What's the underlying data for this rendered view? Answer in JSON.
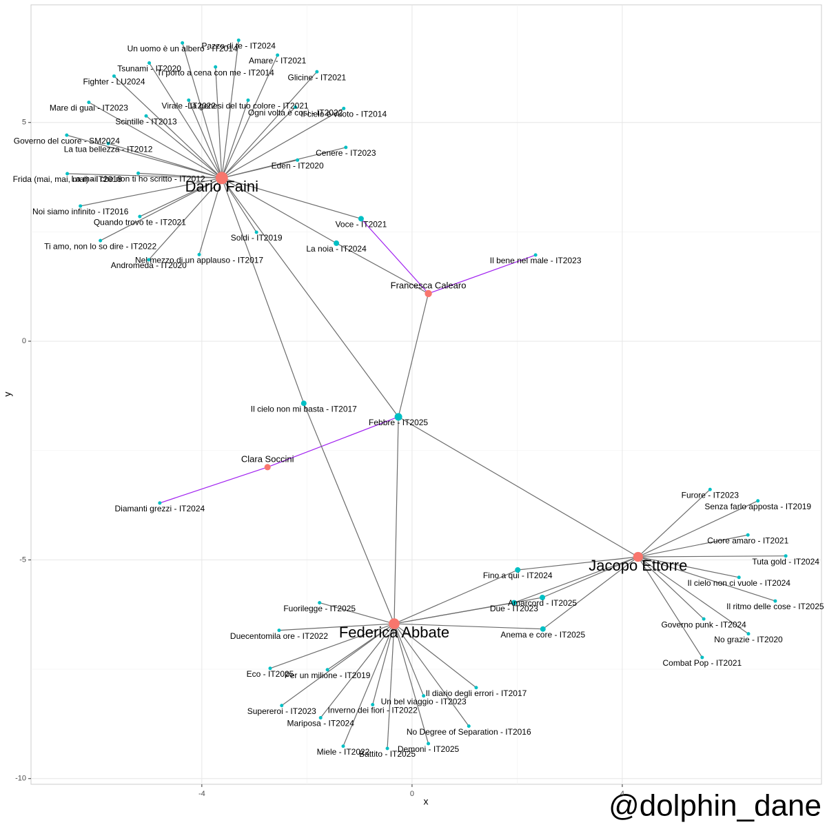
{
  "chart_data": {
    "type": "network",
    "x_label": "x",
    "y_label": "y",
    "caption": "@dolphin_dane",
    "xlim": [
      -7.25,
      7.79
    ],
    "ylim": [
      -10.13,
      7.69
    ],
    "xticks": [
      -4,
      0,
      4
    ],
    "yticks": [
      -10,
      -5,
      0,
      5
    ],
    "grid": true,
    "colors": {
      "artist": "#F8766D",
      "song": "#00BFC4"
    },
    "nodes": [
      {
        "label": "Dario Faini",
        "kind": "artist",
        "x": -3.62,
        "y": 3.73
      },
      {
        "label": "Francesca Calearo",
        "kind": "artist",
        "x": 0.31,
        "y": 1.09
      },
      {
        "label": "Clara Soccini",
        "kind": "artist",
        "x": -2.75,
        "y": -2.88
      },
      {
        "label": "Jacopo Ettorre",
        "kind": "artist",
        "x": 4.3,
        "y": -4.93
      },
      {
        "label": "Federica Abbate",
        "kind": "artist",
        "x": -0.34,
        "y": -6.46
      },
      {
        "label": "Pazzo di te - IT2024",
        "kind": "song",
        "x": -3.3,
        "y": 6.88
      },
      {
        "label": "Un uomo è un albero - IT2014",
        "kind": "song",
        "x": -4.37,
        "y": 6.82
      },
      {
        "label": "Amare - IT2021",
        "kind": "song",
        "x": -2.56,
        "y": 6.54
      },
      {
        "label": "Tsunami - IT2020",
        "kind": "song",
        "x": -5.0,
        "y": 6.36
      },
      {
        "label": "Ti porto a cena con me - IT2014",
        "kind": "song",
        "x": -3.74,
        "y": 6.27
      },
      {
        "label": "Glicine - IT2021",
        "kind": "song",
        "x": -1.81,
        "y": 6.16
      },
      {
        "label": "Fighter - LU2024",
        "kind": "song",
        "x": -5.67,
        "y": 6.06
      },
      {
        "label": "La genesi del tuo colore - IT2021",
        "kind": "song",
        "x": -3.12,
        "y": 5.51
      },
      {
        "label": "Mare di guai - IT2023",
        "kind": "song",
        "x": -6.15,
        "y": 5.46
      },
      {
        "label": "Virale - IT2022",
        "kind": "song",
        "x": -4.25,
        "y": 5.51
      },
      {
        "label": "Ogni volta è così - IT2022",
        "kind": "song",
        "x": -2.22,
        "y": 5.35
      },
      {
        "label": "Il cielo è vuoto - IT2014",
        "kind": "song",
        "x": -1.3,
        "y": 5.32
      },
      {
        "label": "Scintille - IT2013",
        "kind": "song",
        "x": -5.06,
        "y": 5.15
      },
      {
        "label": "Governo del cuore - SM2024",
        "kind": "song",
        "x": -6.57,
        "y": 4.71
      },
      {
        "label": "La tua bellezza - IT2012",
        "kind": "song",
        "x": -5.78,
        "y": 4.52
      },
      {
        "label": "Cenere - IT2023",
        "kind": "song",
        "x": -1.26,
        "y": 4.43
      },
      {
        "label": "Eden - IT2020",
        "kind": "song",
        "x": -2.18,
        "y": 4.14
      },
      {
        "label": "La mail che non ti ho scritto - IT2012",
        "kind": "song",
        "x": -5.21,
        "y": 3.84
      },
      {
        "label": "Frida (mai, mai, mai) - IT2018",
        "kind": "song",
        "x": -6.56,
        "y": 3.83
      },
      {
        "label": "Noi siamo infinito - IT2016",
        "kind": "song",
        "x": -6.31,
        "y": 3.09
      },
      {
        "label": "Quando trovo te - IT2021",
        "kind": "song",
        "x": -5.18,
        "y": 2.85
      },
      {
        "label": "Soldi - IT2019",
        "kind": "song",
        "x": -2.96,
        "y": 2.49
      },
      {
        "label": "Ti amo, non lo so dire - IT2022",
        "kind": "song",
        "x": -5.93,
        "y": 2.3
      },
      {
        "label": "Nel mezzo di un applauso - IT2017",
        "kind": "song",
        "x": -4.05,
        "y": 1.98
      },
      {
        "label": "Andromeda - IT2020",
        "kind": "song",
        "x": -5.01,
        "y": 1.86
      },
      {
        "label": "Voce - IT2021",
        "kind": "song",
        "x": -0.97,
        "y": 2.8
      },
      {
        "label": "La noia - IT2024",
        "kind": "song",
        "x": -1.44,
        "y": 2.24
      },
      {
        "label": "Il bene nel male - IT2023",
        "kind": "song",
        "x": 2.35,
        "y": 1.97
      },
      {
        "label": "Il cielo non mi basta - IT2017",
        "kind": "song",
        "x": -2.06,
        "y": -1.42
      },
      {
        "label": "Febbre - IT2025",
        "kind": "song",
        "x": -0.26,
        "y": -1.73
      },
      {
        "label": "Diamanti grezzi - IT2024",
        "kind": "song",
        "x": -4.8,
        "y": -3.7
      },
      {
        "label": "Furore - IT2023",
        "kind": "song",
        "x": 5.67,
        "y": -3.39
      },
      {
        "label": "Senza farlo apposta - IT2019",
        "kind": "song",
        "x": 6.58,
        "y": -3.65
      },
      {
        "label": "Cuore amaro - IT2021",
        "kind": "song",
        "x": 6.39,
        "y": -4.43
      },
      {
        "label": "Tuta gold - IT2024",
        "kind": "song",
        "x": 7.11,
        "y": -4.91
      },
      {
        "label": "Il cielo non ci vuole - IT2024",
        "kind": "song",
        "x": 6.22,
        "y": -5.4
      },
      {
        "label": "Il ritmo delle cose - IT2025",
        "kind": "song",
        "x": 6.91,
        "y": -5.94
      },
      {
        "label": "Governo punk - IT2024",
        "kind": "song",
        "x": 5.55,
        "y": -6.35
      },
      {
        "label": "No grazie - IT2020",
        "kind": "song",
        "x": 6.4,
        "y": -6.69
      },
      {
        "label": "Combat Pop - IT2021",
        "kind": "song",
        "x": 5.52,
        "y": -7.23
      },
      {
        "label": "Fino a qui - IT2024",
        "kind": "song",
        "x": 2.01,
        "y": -5.23
      },
      {
        "label": "Amarcord - IT2025",
        "kind": "song",
        "x": 2.48,
        "y": -5.86
      },
      {
        "label": "Due - IT2023",
        "kind": "song",
        "x": 1.94,
        "y": -5.98
      },
      {
        "label": "Anema e core - IT2025",
        "kind": "song",
        "x": 2.49,
        "y": -6.58
      },
      {
        "label": "Fuorilegge - IT2025",
        "kind": "song",
        "x": -1.76,
        "y": -5.98
      },
      {
        "label": "Duecentomila ore - IT2022",
        "kind": "song",
        "x": -2.53,
        "y": -6.61
      },
      {
        "label": "Eco - IT2025",
        "kind": "song",
        "x": -2.7,
        "y": -7.48
      },
      {
        "label": "Per un milione - IT2019",
        "kind": "song",
        "x": -1.61,
        "y": -7.51
      },
      {
        "label": "Supereroi - IT2023",
        "kind": "song",
        "x": -2.48,
        "y": -8.33
      },
      {
        "label": "Il diario degli errori - IT2017",
        "kind": "song",
        "x": 1.22,
        "y": -7.92
      },
      {
        "label": "Un bel viaggio - IT2023",
        "kind": "song",
        "x": 0.22,
        "y": -8.11
      },
      {
        "label": "Inverno dei fiori - IT2022",
        "kind": "song",
        "x": -0.75,
        "y": -8.31
      },
      {
        "label": "No Degree of Separation - IT2016",
        "kind": "song",
        "x": 1.08,
        "y": -8.8
      },
      {
        "label": "Mariposa - IT2024",
        "kind": "song",
        "x": -1.74,
        "y": -8.61
      },
      {
        "label": "Demoni - IT2025",
        "kind": "song",
        "x": 0.31,
        "y": -9.2
      },
      {
        "label": "Miele - IT2022",
        "kind": "song",
        "x": -1.31,
        "y": -9.26
      },
      {
        "label": "Battito - IT2025",
        "kind": "song",
        "x": -0.47,
        "y": -9.31
      }
    ],
    "edge_colors": {
      "plain": "#6b6b6b",
      "highlight": "#a020f0"
    },
    "edges": [
      [
        "Dario Faini",
        "Pazzo di te - IT2024",
        "plain"
      ],
      [
        "Dario Faini",
        "Un uomo è un albero - IT2014",
        "plain"
      ],
      [
        "Dario Faini",
        "Amare - IT2021",
        "plain"
      ],
      [
        "Dario Faini",
        "Tsunami - IT2020",
        "plain"
      ],
      [
        "Dario Faini",
        "Ti porto a cena con me - IT2014",
        "plain"
      ],
      [
        "Dario Faini",
        "Glicine - IT2021",
        "plain"
      ],
      [
        "Dario Faini",
        "Fighter - LU2024",
        "plain"
      ],
      [
        "Dario Faini",
        "La genesi del tuo colore - IT2021",
        "plain"
      ],
      [
        "Dario Faini",
        "Mare di guai - IT2023",
        "plain"
      ],
      [
        "Dario Faini",
        "Virale - IT2022",
        "plain"
      ],
      [
        "Dario Faini",
        "Ogni volta è così - IT2022",
        "plain"
      ],
      [
        "Dario Faini",
        "Il cielo è vuoto - IT2014",
        "plain"
      ],
      [
        "Dario Faini",
        "Scintille - IT2013",
        "plain"
      ],
      [
        "Dario Faini",
        "Governo del cuore - SM2024",
        "plain"
      ],
      [
        "Dario Faini",
        "La tua bellezza - IT2012",
        "plain"
      ],
      [
        "Dario Faini",
        "Cenere - IT2023",
        "plain"
      ],
      [
        "Dario Faini",
        "Eden - IT2020",
        "plain"
      ],
      [
        "Dario Faini",
        "La mail che non ti ho scritto - IT2012",
        "plain"
      ],
      [
        "Dario Faini",
        "Frida (mai, mai, mai) - IT2018",
        "plain"
      ],
      [
        "Dario Faini",
        "Noi siamo infinito - IT2016",
        "plain"
      ],
      [
        "Dario Faini",
        "Quando trovo te - IT2021",
        "plain"
      ],
      [
        "Dario Faini",
        "Soldi - IT2019",
        "plain"
      ],
      [
        "Dario Faini",
        "Ti amo, non lo so dire - IT2022",
        "plain"
      ],
      [
        "Dario Faini",
        "Nel mezzo di un applauso - IT2017",
        "plain"
      ],
      [
        "Dario Faini",
        "Andromeda - IT2020",
        "plain"
      ],
      [
        "Dario Faini",
        "Voce - IT2021",
        "plain"
      ],
      [
        "Dario Faini",
        "La noia - IT2024",
        "plain"
      ],
      [
        "Dario Faini",
        "Il cielo non mi basta - IT2017",
        "plain"
      ],
      [
        "Dario Faini",
        "Febbre - IT2025",
        "plain"
      ],
      [
        "Francesca Calearo",
        "Voce - IT2021",
        "highlight"
      ],
      [
        "Francesca Calearo",
        "La noia - IT2024",
        "plain"
      ],
      [
        "Francesca Calearo",
        "Il bene nel male - IT2023",
        "highlight"
      ],
      [
        "Francesca Calearo",
        "Febbre - IT2025",
        "plain"
      ],
      [
        "Clara Soccini",
        "Febbre - IT2025",
        "highlight"
      ],
      [
        "Clara Soccini",
        "Diamanti grezzi - IT2024",
        "highlight"
      ],
      [
        "Jacopo Ettorre",
        "Furore - IT2023",
        "plain"
      ],
      [
        "Jacopo Ettorre",
        "Senza farlo apposta - IT2019",
        "plain"
      ],
      [
        "Jacopo Ettorre",
        "Cuore amaro - IT2021",
        "plain"
      ],
      [
        "Jacopo Ettorre",
        "Tuta gold - IT2024",
        "plain"
      ],
      [
        "Jacopo Ettorre",
        "Il cielo non ci vuole - IT2024",
        "plain"
      ],
      [
        "Jacopo Ettorre",
        "Il ritmo delle cose - IT2025",
        "plain"
      ],
      [
        "Jacopo Ettorre",
        "Governo punk - IT2024",
        "plain"
      ],
      [
        "Jacopo Ettorre",
        "No grazie - IT2020",
        "plain"
      ],
      [
        "Jacopo Ettorre",
        "Combat Pop - IT2021",
        "plain"
      ],
      [
        "Jacopo Ettorre",
        "Fino a qui - IT2024",
        "plain"
      ],
      [
        "Jacopo Ettorre",
        "Amarcord - IT2025",
        "plain"
      ],
      [
        "Jacopo Ettorre",
        "Due - IT2023",
        "plain"
      ],
      [
        "Jacopo Ettorre",
        "Anema e core - IT2025",
        "plain"
      ],
      [
        "Jacopo Ettorre",
        "Febbre - IT2025",
        "plain"
      ],
      [
        "Federica Abbate",
        "Il cielo non mi basta - IT2017",
        "plain"
      ],
      [
        "Federica Abbate",
        "Febbre - IT2025",
        "plain"
      ],
      [
        "Federica Abbate",
        "Fino a qui - IT2024",
        "plain"
      ],
      [
        "Federica Abbate",
        "Amarcord - IT2025",
        "plain"
      ],
      [
        "Federica Abbate",
        "Due - IT2023",
        "plain"
      ],
      [
        "Federica Abbate",
        "Anema e core - IT2025",
        "plain"
      ],
      [
        "Federica Abbate",
        "Fuorilegge - IT2025",
        "plain"
      ],
      [
        "Federica Abbate",
        "Duecentomila ore - IT2022",
        "plain"
      ],
      [
        "Federica Abbate",
        "Eco - IT2025",
        "plain"
      ],
      [
        "Federica Abbate",
        "Per un milione - IT2019",
        "plain"
      ],
      [
        "Federica Abbate",
        "Supereroi - IT2023",
        "plain"
      ],
      [
        "Federica Abbate",
        "Il diario degli errori - IT2017",
        "plain"
      ],
      [
        "Federica Abbate",
        "Un bel viaggio - IT2023",
        "plain"
      ],
      [
        "Federica Abbate",
        "Inverno dei fiori - IT2022",
        "plain"
      ],
      [
        "Federica Abbate",
        "No Degree of Separation - IT2016",
        "plain"
      ],
      [
        "Federica Abbate",
        "Mariposa - IT2024",
        "plain"
      ],
      [
        "Federica Abbate",
        "Demoni - IT2025",
        "plain"
      ],
      [
        "Federica Abbate",
        "Miele - IT2022",
        "plain"
      ],
      [
        "Federica Abbate",
        "Battito - IT2025",
        "plain"
      ]
    ]
  }
}
